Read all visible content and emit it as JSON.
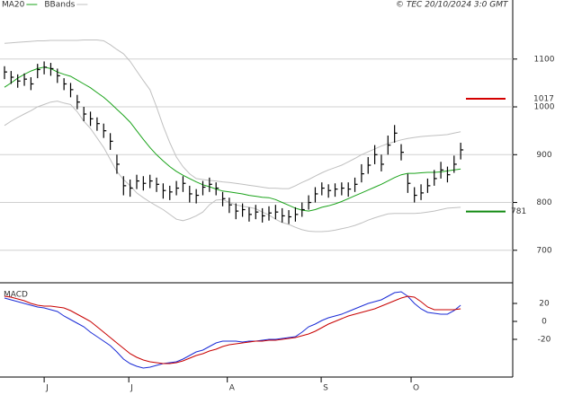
{
  "chart_data": [
    {
      "type": "ohlc",
      "copyright": "© TEC 20/10/2024 3:0 GMT",
      "ylim": [
        632,
        1201
      ],
      "yticks": [
        700,
        800,
        900,
        1000,
        1100
      ],
      "grid": true,
      "high": [
        1085,
        1075,
        1068,
        1070,
        1062,
        1090,
        1095,
        1092,
        1080,
        1060,
        1050,
        1025,
        1000,
        990,
        978,
        965,
        945,
        900,
        855,
        848,
        858,
        855,
        858,
        852,
        840,
        835,
        845,
        855,
        835,
        828,
        845,
        852,
        842,
        822,
        810,
        798,
        798,
        790,
        795,
        788,
        792,
        795,
        788,
        784,
        790,
        800,
        815,
        832,
        842,
        838,
        840,
        842,
        842,
        852,
        880,
        895,
        920,
        900,
        940,
        962,
        922,
        860,
        832,
        838,
        850,
        868,
        885,
        875,
        898,
        925
      ],
      "low": [
        1058,
        1048,
        1040,
        1044,
        1035,
        1060,
        1068,
        1065,
        1050,
        1035,
        1020,
        995,
        970,
        960,
        950,
        935,
        910,
        860,
        815,
        812,
        828,
        825,
        830,
        822,
        808,
        805,
        815,
        822,
        800,
        798,
        815,
        822,
        815,
        792,
        778,
        765,
        770,
        760,
        765,
        758,
        762,
        765,
        758,
        755,
        760,
        770,
        785,
        800,
        815,
        810,
        812,
        815,
        812,
        822,
        842,
        860,
        880,
        865,
        900,
        925,
        888,
        820,
        800,
        805,
        820,
        835,
        850,
        842,
        862,
        890
      ],
      "close": [
        1073,
        1062,
        1054,
        1058,
        1048,
        1078,
        1083,
        1080,
        1065,
        1048,
        1036,
        1010,
        985,
        975,
        965,
        950,
        928,
        880,
        835,
        830,
        845,
        840,
        845,
        838,
        825,
        822,
        830,
        840,
        818,
        815,
        832,
        838,
        830,
        808,
        795,
        782,
        785,
        775,
        780,
        772,
        778,
        780,
        772,
        770,
        775,
        785,
        800,
        818,
        830,
        825,
        828,
        830,
        828,
        838,
        860,
        878,
        900,
        880,
        920,
        945,
        905,
        840,
        815,
        820,
        835,
        850,
        868,
        858,
        880,
        910
      ],
      "bar_color": "#000000",
      "series": [
        {
          "name": "MA20",
          "color": "#1aa31a",
          "values": [
            1041,
            1050,
            1060,
            1068,
            1075,
            1080,
            1083,
            1080,
            1073,
            1068,
            1064,
            1056,
            1048,
            1040,
            1030,
            1020,
            1008,
            995,
            982,
            968,
            950,
            932,
            915,
            900,
            887,
            875,
            865,
            857,
            850,
            843,
            837,
            833,
            828,
            824,
            822,
            820,
            818,
            815,
            813,
            811,
            810,
            806,
            800,
            794,
            788,
            784,
            782,
            785,
            790,
            793,
            797,
            802,
            808,
            814,
            820,
            826,
            832,
            838,
            845,
            852,
            858,
            861,
            861,
            862,
            863,
            863,
            864,
            866,
            868,
            870
          ]
        },
        {
          "name": "BBands",
          "color": "#c0c0c0",
          "upper": [
            1133,
            1134,
            1135,
            1136,
            1137,
            1138,
            1138,
            1139,
            1139,
            1139,
            1139,
            1139,
            1140,
            1140,
            1140,
            1138,
            1130,
            1120,
            1111,
            1095,
            1075,
            1055,
            1036,
            1000,
            960,
            925,
            895,
            875,
            860,
            850,
            848,
            846,
            845,
            843,
            842,
            840,
            838,
            836,
            834,
            832,
            830,
            830,
            829,
            829,
            835,
            842,
            848,
            855,
            862,
            868,
            873,
            878,
            885,
            892,
            900,
            906,
            912,
            918,
            923,
            927,
            931,
            934,
            936,
            938,
            939,
            940,
            941,
            942,
            945,
            948
          ],
          "lower": [
            961,
            970,
            978,
            985,
            992,
            1000,
            1005,
            1010,
            1012,
            1008,
            1005,
            990,
            970,
            955,
            935,
            915,
            890,
            865,
            848,
            835,
            820,
            810,
            801,
            793,
            785,
            775,
            765,
            762,
            766,
            772,
            780,
            795,
            805,
            806,
            800,
            795,
            792,
            790,
            787,
            780,
            774,
            765,
            758,
            754,
            748,
            743,
            740,
            739,
            739,
            740,
            742,
            745,
            748,
            752,
            757,
            763,
            768,
            772,
            776,
            777,
            777,
            777,
            777,
            778,
            780,
            782,
            785,
            788,
            789,
            790
          ]
        }
      ],
      "levels": [
        {
          "value": 1017,
          "color": "#d40000"
        },
        {
          "value": 781,
          "color": "#108a10"
        }
      ]
    },
    {
      "type": "line",
      "title": "MACD",
      "ylim": [
        -62,
        40
      ],
      "yticks": [
        -20,
        0,
        20
      ],
      "xticks": [
        {
          "value": 6,
          "label": "J"
        },
        {
          "value": 18.8,
          "label": "J"
        },
        {
          "value": 33.7,
          "label": "A"
        },
        {
          "value": 47.9,
          "label": "S"
        },
        {
          "value": 61.5,
          "label": "O"
        }
      ],
      "series": [
        {
          "color": "#1a2bd6",
          "values": [
            26,
            24,
            22,
            20,
            18,
            16,
            15,
            13,
            11,
            6,
            2,
            -2,
            -6,
            -12,
            -17,
            -22,
            -27,
            -34,
            -42,
            -47,
            -50,
            -52,
            -51,
            -49,
            -47,
            -46,
            -45,
            -42,
            -38,
            -34,
            -32,
            -28,
            -24,
            -22,
            -22,
            -22,
            -23,
            -22,
            -22,
            -21,
            -20,
            -20,
            -19,
            -18,
            -17,
            -12,
            -6,
            -3,
            1,
            4,
            6,
            8,
            11,
            14,
            17,
            20,
            22,
            24,
            28,
            32,
            33,
            28,
            20,
            14,
            10,
            9,
            8,
            8,
            12,
            18
          ]
        },
        {
          "color": "#c80000",
          "values": [
            28,
            27,
            25,
            23,
            20,
            18,
            17,
            17,
            16,
            15,
            12,
            8,
            4,
            0,
            -6,
            -12,
            -18,
            -24,
            -30,
            -36,
            -40,
            -43,
            -45,
            -46,
            -47,
            -47,
            -46,
            -44,
            -41,
            -38,
            -36,
            -33,
            -31,
            -28,
            -26,
            -25,
            -24,
            -23,
            -22,
            -22,
            -21,
            -21,
            -20,
            -19,
            -18,
            -16,
            -14,
            -11,
            -7,
            -3,
            0,
            3,
            6,
            8,
            10,
            12,
            14,
            17,
            20,
            23,
            26,
            28,
            27,
            22,
            16,
            13,
            13,
            13,
            13,
            14
          ]
        }
      ]
    }
  ]
}
